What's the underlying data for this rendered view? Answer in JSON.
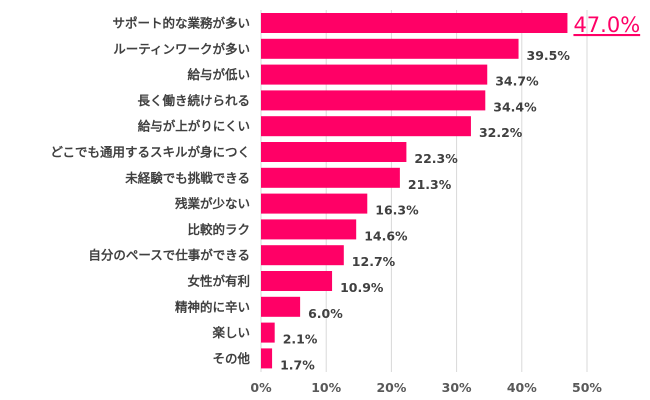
{
  "chart_data": {
    "type": "bar",
    "orientation": "horizontal",
    "categories": [
      "サポート的な業務が多い",
      "ルーティンワークが多い",
      "給与が低い",
      "長く働き続けられる",
      "給与が上がりにくい",
      "どこでも通用するスキルが身につく",
      "未経験でも挑戦できる",
      "残業が少ない",
      "比較的ラク",
      "自分のペースで仕事ができる",
      "女性が有利",
      "精神的に辛い",
      "楽しい",
      "その他"
    ],
    "values": [
      47.0,
      39.5,
      34.7,
      34.4,
      32.2,
      22.3,
      21.3,
      16.3,
      14.6,
      12.7,
      10.9,
      6.0,
      2.1,
      1.7
    ],
    "data_labels": [
      "47.0%",
      "39.5%",
      "34.7%",
      "34.4%",
      "32.2%",
      "22.3%",
      "21.3%",
      "16.3%",
      "14.6%",
      "12.7%",
      "10.9%",
      "6.0%",
      "2.1%",
      "1.7%"
    ],
    "xlim": [
      0,
      50
    ],
    "x_ticks": [
      "0%",
      "10%",
      "20%",
      "30%",
      "40%",
      "50%"
    ],
    "grid": "vertical",
    "bar_color": "#ff0066",
    "highlight_label_color": "#ff0066",
    "title": "",
    "xlabel": "",
    "ylabel": ""
  }
}
